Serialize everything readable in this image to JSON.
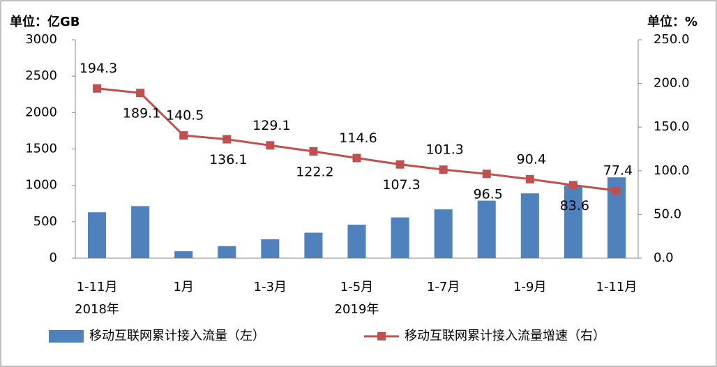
{
  "chart_data": {
    "type": "bar-line",
    "y_unit": "单位：亿GB",
    "y2_unit": "单位：%",
    "categories": [
      "1-11月",
      null,
      "1月",
      null,
      "1-3月",
      null,
      "1-5月",
      null,
      "1-7月",
      null,
      "1-9月",
      null,
      "1-11月"
    ],
    "groups": [
      {
        "label": "2018年",
        "index": 0
      },
      {
        "label": "2019年",
        "index": 6
      }
    ],
    "series": [
      {
        "name": "移动互联网累计接入流量（左）",
        "type": "bar",
        "color": "#4f81bd",
        "values": [
          630,
          715,
          95,
          165,
          260,
          350,
          460,
          560,
          670,
          790,
          890,
          1000,
          1110
        ]
      },
      {
        "name": "移动互联网累计接入流量增速（右）",
        "type": "line",
        "axis": "y2",
        "color": "#c0504d",
        "values": [
          194.3,
          189.1,
          140.5,
          136.1,
          129.1,
          122.2,
          114.6,
          107.3,
          101.3,
          96.5,
          90.4,
          83.6,
          77.4
        ]
      }
    ],
    "ylim": [
      0,
      3000
    ],
    "yticks": [
      0,
      500,
      1000,
      1500,
      2000,
      2500,
      3000
    ],
    "y2lim": [
      0,
      250
    ],
    "y2ticks": [
      {
        "value": 0,
        "label": "0.0"
      },
      {
        "value": 50,
        "label": "50.0"
      },
      {
        "value": 100,
        "label": "100.0"
      },
      {
        "value": 150,
        "label": "150.0"
      },
      {
        "value": 200,
        "label": "200.0"
      },
      {
        "value": 250,
        "label": "250.0"
      }
    ],
    "legend": "bottom"
  }
}
